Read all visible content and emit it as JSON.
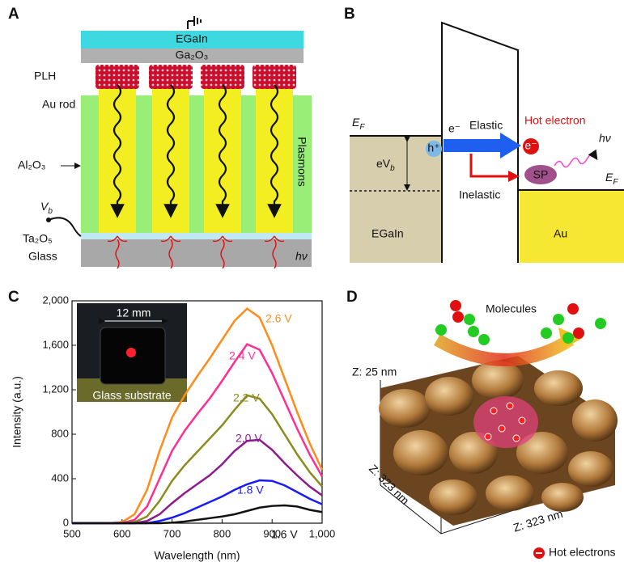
{
  "panels": {
    "a": {
      "label": "A",
      "egain": "EGaIn",
      "oxide": "Ga₂O₃",
      "plh": "PLH",
      "rod": "Au rod",
      "alumina": "Al₂O₃",
      "plasmons": "Plasmons",
      "vb": {
        "main": "V",
        "sub": "b"
      },
      "tantala": "Ta₂O₅",
      "glass": "Glass",
      "photon": "hν"
    },
    "b": {
      "label": "B",
      "ef_left": {
        "main": "E",
        "sub": "F"
      },
      "electron": "e⁻",
      "elastic": "Elastic",
      "hot": "Hot electron",
      "hot_e": "e⁻",
      "photon": "hν",
      "hole": "h⁺",
      "evb": {
        "main": "eV",
        "sub": "b"
      },
      "sp": "SP",
      "ef_right": {
        "main": "E",
        "sub": "F"
      },
      "inelastic": "Inelastic",
      "egain": "EGaIn",
      "au": "Au"
    },
    "c": {
      "label": "C",
      "scale": "12 mm",
      "substrate": "Glass substrate"
    },
    "d": {
      "label": "D",
      "molecules": "Molecules",
      "z_height": "Z: 25 nm",
      "z_side": "Z: 323 nm",
      "z_front": "Z: 323 nm",
      "hot": "Hot electrons"
    }
  },
  "chart_data": {
    "type": "line",
    "xlabel": "Wavelength (nm)",
    "ylabel": "Intensity (a.u.)",
    "x": [
      500,
      525,
      550,
      575,
      600,
      625,
      650,
      675,
      700,
      725,
      750,
      775,
      800,
      825,
      850,
      875,
      900,
      925,
      950,
      975,
      1000
    ],
    "xlim": [
      500,
      1000
    ],
    "xticks": [
      500,
      600,
      700,
      800,
      900,
      {
        "value": 1000,
        "label": "1,000"
      }
    ],
    "ylim": [
      0,
      2000
    ],
    "yticks": [
      0,
      400,
      800,
      {
        "value": 1200,
        "label": "1,200"
      },
      {
        "value": 1600,
        "label": "1,600"
      },
      {
        "value": 2000,
        "label": "2,000"
      }
    ],
    "series": [
      {
        "name": "2.6 V",
        "color": "#ff8c1a",
        "values": [
          0,
          0,
          0,
          0,
          10,
          80,
          300,
          650,
          950,
          1150,
          1320,
          1480,
          1650,
          1820,
          1930,
          1850,
          1600,
          1300,
          1000,
          720,
          480
        ]
      },
      {
        "name": "2.4 V",
        "color": "#ff2f92",
        "values": [
          0,
          0,
          0,
          0,
          0,
          30,
          150,
          400,
          650,
          830,
          980,
          1120,
          1280,
          1450,
          1610,
          1560,
          1350,
          1100,
          850,
          620,
          420
        ]
      },
      {
        "name": "2.2 V",
        "color": "#8c8c1e",
        "values": [
          0,
          0,
          0,
          0,
          0,
          10,
          60,
          200,
          380,
          520,
          640,
          760,
          880,
          1020,
          1150,
          1120,
          980,
          800,
          620,
          460,
          330
        ]
      },
      {
        "name": "2.0 V",
        "color": "#8e1a8e",
        "values": [
          0,
          0,
          0,
          0,
          0,
          0,
          20,
          80,
          180,
          270,
          350,
          430,
          530,
          650,
          740,
          750,
          660,
          540,
          430,
          330,
          250
        ]
      },
      {
        "name": "1.8 V",
        "color": "#1a1aff",
        "values": [
          0,
          0,
          0,
          0,
          0,
          0,
          0,
          20,
          50,
          90,
          140,
          190,
          240,
          300,
          350,
          385,
          380,
          340,
          280,
          220,
          170
        ]
      },
      {
        "name": "1.6 V",
        "color": "#111111",
        "values": [
          0,
          0,
          0,
          0,
          0,
          0,
          0,
          0,
          5,
          15,
          30,
          45,
          60,
          80,
          110,
          140,
          155,
          160,
          150,
          120,
          100
        ]
      }
    ]
  }
}
